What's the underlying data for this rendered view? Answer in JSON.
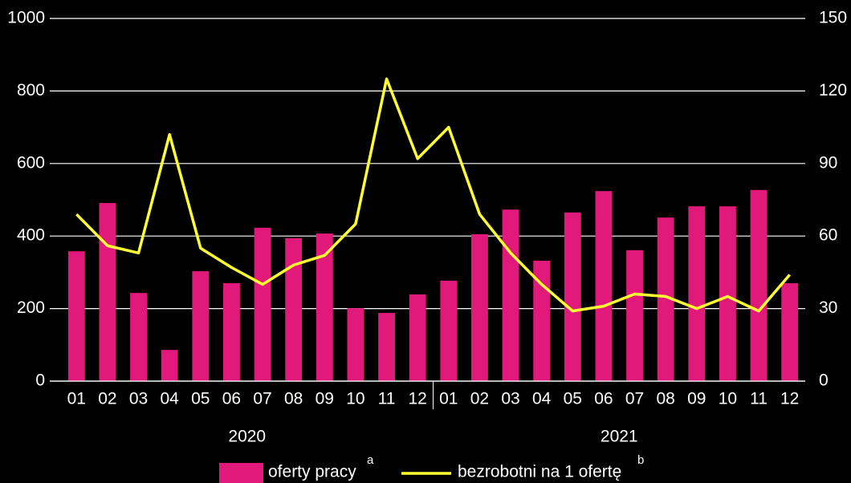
{
  "chart_data": {
    "type": "bar_line",
    "categories": [
      "01",
      "02",
      "03",
      "04",
      "05",
      "06",
      "07",
      "08",
      "09",
      "10",
      "11",
      "12",
      "01",
      "02",
      "03",
      "04",
      "05",
      "06",
      "07",
      "08",
      "09",
      "10",
      "11",
      "12"
    ],
    "year_labels": [
      "2020",
      "2021"
    ],
    "series": [
      {
        "name": "oferty pracy",
        "note": "a",
        "type": "bar",
        "color": "#e0197a",
        "values": [
          358,
          491,
          243,
          86,
          303,
          270,
          423,
          394,
          407,
          201,
          188,
          239,
          277,
          405,
          473,
          332,
          465,
          524,
          361,
          451,
          482,
          482,
          527,
          270
        ]
      },
      {
        "name": "bezrobotni na 1 ofertę",
        "note": "b",
        "type": "line",
        "axis": "y2",
        "color": "#ffff33",
        "values": [
          69,
          56,
          53,
          102,
          55,
          47,
          40,
          48,
          52,
          65,
          125,
          92,
          105,
          69,
          53,
          40,
          29,
          31,
          36,
          35,
          30,
          35,
          29,
          44
        ]
      }
    ],
    "ylim": [
      0,
      1000
    ],
    "yticks": [
      0,
      200,
      400,
      600,
      800,
      1000
    ],
    "y2lim": [
      0,
      150
    ],
    "y2ticks": [
      0,
      30,
      60,
      90,
      120,
      150
    ],
    "grid": true
  }
}
